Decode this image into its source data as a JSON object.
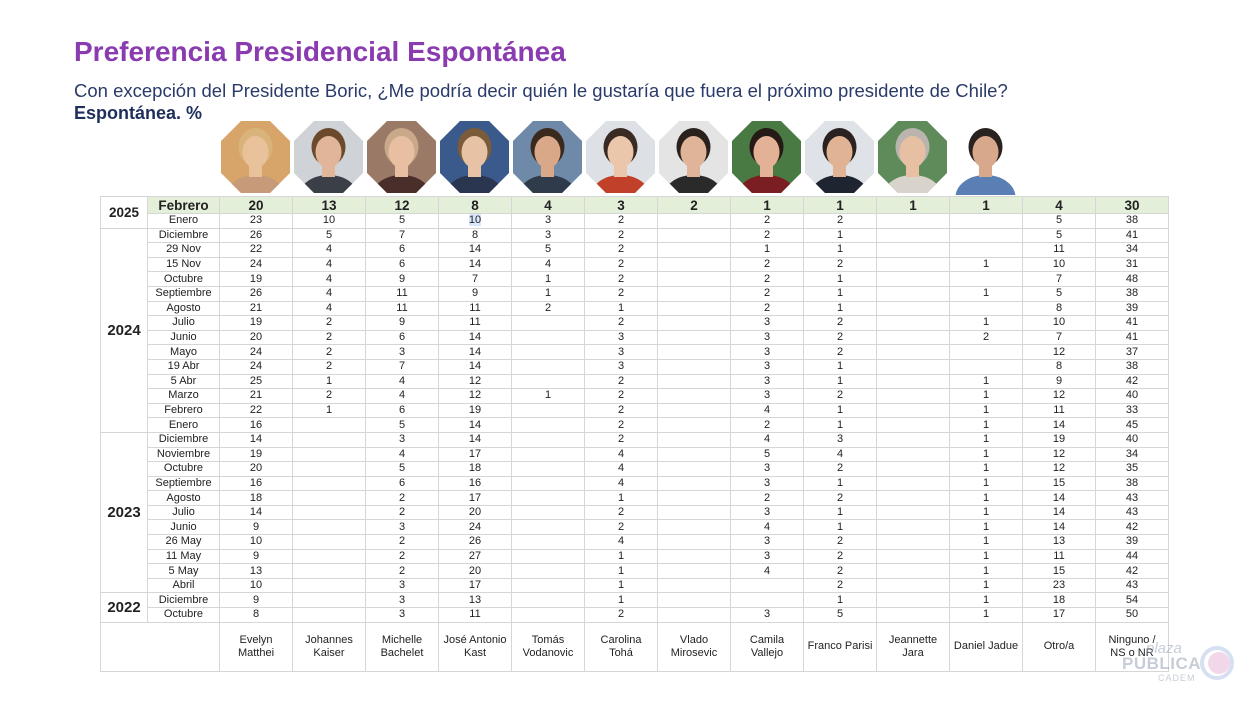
{
  "header": {
    "title": "Preferencia Presidencial Espontánea",
    "subtitle": "Con excepción del Presidente Boric, ¿Me podría decir quién le gustaría que fuera el próximo presidente de Chile?",
    "subtitle2": "Espontánea. %"
  },
  "candidates": [
    {
      "name": "Evelyn Matthei",
      "line1": "Evelyn",
      "line2": "Matthei",
      "photo_bg": "#d7a56a",
      "skin": "#e9c19a",
      "hair": "#d9b47a",
      "suit": "#c79a7a"
    },
    {
      "name": "Johannes Kaiser",
      "line1": "Johannes",
      "line2": "Kaiser",
      "photo_bg": "#cfd2d6",
      "skin": "#e0b59a",
      "hair": "#6b4a2c",
      "suit": "#3a3f48"
    },
    {
      "name": "Michelle Bachelet",
      "line1": "Michelle",
      "line2": "Bachelet",
      "photo_bg": "#9a7a66",
      "skin": "#e8bfa0",
      "hair": "#c9a98a",
      "suit": "#4a2e2a"
    },
    {
      "name": "José Antonio Kast",
      "line1": "José Antonio",
      "line2": "Kast",
      "photo_bg": "#3a5a8c",
      "skin": "#e7c2a4",
      "hair": "#7a5b3a",
      "suit": "#2a3550"
    },
    {
      "name": "Tomás Vodanovic",
      "line1": "Tomás",
      "line2": "Vodanovic",
      "photo_bg": "#6f8aa8",
      "skin": "#d9a888",
      "hair": "#3a2a1e",
      "suit": "#2f3a4a"
    },
    {
      "name": "Carolina Tohá",
      "line1": "Carolina",
      "line2": "Tohá",
      "photo_bg": "#dde1e6",
      "skin": "#ebc6aa",
      "hair": "#3a2a24",
      "suit": "#c0402a"
    },
    {
      "name": "Vlado Mirosevic",
      "line1": "Vlado",
      "line2": "Mirosevic",
      "photo_bg": "#e4e4e4",
      "skin": "#e0b498",
      "hair": "#2a211c",
      "suit": "#2a2a2a"
    },
    {
      "name": "Camila Vallejo",
      "line1": "Camila",
      "line2": "Vallejo",
      "photo_bg": "#4a7a44",
      "skin": "#e2b196",
      "hair": "#251a16",
      "suit": "#7a1e22"
    },
    {
      "name": "Franco Parisi",
      "line1": "Franco Parisi",
      "line2": "",
      "photo_bg": "#dfe2e6",
      "skin": "#e0b394",
      "hair": "#2a2220",
      "suit": "#1e2430"
    },
    {
      "name": "Jeannette Jara",
      "line1": "Jeannette",
      "line2": "Jara",
      "photo_bg": "#5f8a5a",
      "skin": "#e7c0a4",
      "hair": "#b9b5ae",
      "suit": "#d8d4cc"
    },
    {
      "name": "Daniel Jadue",
      "line1": "Daniel Jadue",
      "line2": "",
      "photo_bg": "#ffffff",
      "skin": "#d8a88c",
      "hair": "#2a221e",
      "suit": "#5a7fb4"
    },
    {
      "name": "Otro/a",
      "line1": "Otro/a",
      "line2": ""
    },
    {
      "name": "Ninguno / NS o NR",
      "line1": "Ninguno /",
      "line2": "NS o NR"
    }
  ],
  "table": {
    "header_year": "2025",
    "header_row": {
      "label": "Febrero",
      "values": [
        "20",
        "13",
        "12",
        "8",
        "4",
        "3",
        "2",
        "1",
        "1",
        "1",
        "1",
        "4",
        "30"
      ]
    },
    "groups": [
      {
        "year": "2025",
        "rows": [
          {
            "label": "Enero",
            "values": [
              "23",
              "10",
              "5",
              "10",
              "3",
              "2",
              "",
              "2",
              "2",
              "",
              "",
              "5",
              "38"
            ]
          }
        ]
      },
      {
        "year": "2024",
        "rows": [
          {
            "label": "Diciembre",
            "values": [
              "26",
              "5",
              "7",
              "8",
              "3",
              "2",
              "",
              "2",
              "1",
              "",
              "",
              "5",
              "41"
            ]
          },
          {
            "label": "29 Nov",
            "values": [
              "22",
              "4",
              "6",
              "14",
              "5",
              "2",
              "",
              "1",
              "1",
              "",
              "",
              "11",
              "34"
            ]
          },
          {
            "label": "15 Nov",
            "values": [
              "24",
              "4",
              "6",
              "14",
              "4",
              "2",
              "",
              "2",
              "2",
              "",
              "1",
              "10",
              "31"
            ]
          },
          {
            "label": "Octubre",
            "values": [
              "19",
              "4",
              "9",
              "7",
              "1",
              "2",
              "",
              "2",
              "1",
              "",
              "",
              "7",
              "48"
            ]
          },
          {
            "label": "Septiembre",
            "values": [
              "26",
              "4",
              "11",
              "9",
              "1",
              "2",
              "",
              "2",
              "1",
              "",
              "1",
              "5",
              "38"
            ]
          },
          {
            "label": "Agosto",
            "values": [
              "21",
              "4",
              "11",
              "11",
              "2",
              "1",
              "",
              "2",
              "1",
              "",
              "",
              "8",
              "39"
            ]
          },
          {
            "label": "Julio",
            "values": [
              "19",
              "2",
              "9",
              "11",
              "",
              "2",
              "",
              "3",
              "2",
              "",
              "1",
              "10",
              "41"
            ]
          },
          {
            "label": "Junio",
            "values": [
              "20",
              "2",
              "6",
              "14",
              "",
              "3",
              "",
              "3",
              "2",
              "",
              "2",
              "7",
              "41"
            ]
          },
          {
            "label": "Mayo",
            "values": [
              "24",
              "2",
              "3",
              "14",
              "",
              "3",
              "",
              "3",
              "2",
              "",
              "",
              "12",
              "37"
            ]
          },
          {
            "label": "19 Abr",
            "values": [
              "24",
              "2",
              "7",
              "14",
              "",
              "3",
              "",
              "3",
              "1",
              "",
              "",
              "8",
              "38"
            ]
          },
          {
            "label": "5 Abr",
            "values": [
              "25",
              "1",
              "4",
              "12",
              "",
              "2",
              "",
              "3",
              "1",
              "",
              "1",
              "9",
              "42"
            ]
          },
          {
            "label": "Marzo",
            "values": [
              "21",
              "2",
              "4",
              "12",
              "1",
              "2",
              "",
              "3",
              "2",
              "",
              "1",
              "12",
              "40"
            ]
          },
          {
            "label": "Febrero",
            "values": [
              "22",
              "1",
              "6",
              "19",
              "",
              "2",
              "",
              "4",
              "1",
              "",
              "1",
              "11",
              "33"
            ]
          },
          {
            "label": "Enero",
            "values": [
              "16",
              "",
              "5",
              "14",
              "",
              "2",
              "",
              "2",
              "1",
              "",
              "1",
              "14",
              "45"
            ]
          }
        ]
      },
      {
        "year": "2023",
        "rows": [
          {
            "label": "Diciembre",
            "values": [
              "14",
              "",
              "3",
              "14",
              "",
              "2",
              "",
              "4",
              "3",
              "",
              "1",
              "19",
              "40"
            ]
          },
          {
            "label": "Noviembre",
            "values": [
              "19",
              "",
              "4",
              "17",
              "",
              "4",
              "",
              "5",
              "4",
              "",
              "1",
              "12",
              "34"
            ]
          },
          {
            "label": "Octubre",
            "values": [
              "20",
              "",
              "5",
              "18",
              "",
              "4",
              "",
              "3",
              "2",
              "",
              "1",
              "12",
              "35"
            ]
          },
          {
            "label": "Septiembre",
            "values": [
              "16",
              "",
              "6",
              "16",
              "",
              "4",
              "",
              "3",
              "1",
              "",
              "1",
              "15",
              "38"
            ]
          },
          {
            "label": "Agosto",
            "values": [
              "18",
              "",
              "2",
              "17",
              "",
              "1",
              "",
              "2",
              "2",
              "",
              "1",
              "14",
              "43"
            ]
          },
          {
            "label": "Julio",
            "values": [
              "14",
              "",
              "2",
              "20",
              "",
              "2",
              "",
              "3",
              "1",
              "",
              "1",
              "14",
              "43"
            ]
          },
          {
            "label": "Junio",
            "values": [
              "9",
              "",
              "3",
              "24",
              "",
              "2",
              "",
              "4",
              "1",
              "",
              "1",
              "14",
              "42"
            ]
          },
          {
            "label": "26 May",
            "values": [
              "10",
              "",
              "2",
              "26",
              "",
              "4",
              "",
              "3",
              "2",
              "",
              "1",
              "13",
              "39"
            ]
          },
          {
            "label": "11 May",
            "values": [
              "9",
              "",
              "2",
              "27",
              "",
              "1",
              "",
              "3",
              "2",
              "",
              "1",
              "11",
              "44"
            ]
          },
          {
            "label": "5 May",
            "values": [
              "13",
              "",
              "2",
              "20",
              "",
              "1",
              "",
              "4",
              "2",
              "",
              "1",
              "15",
              "42"
            ]
          },
          {
            "label": "Abril",
            "values": [
              "10",
              "",
              "3",
              "17",
              "",
              "1",
              "",
              "",
              "2",
              "",
              "1",
              "23",
              "43"
            ]
          }
        ]
      },
      {
        "year": "2022",
        "rows": [
          {
            "label": "Diciembre",
            "values": [
              "9",
              "",
              "3",
              "13",
              "",
              "1",
              "",
              "",
              "1",
              "",
              "1",
              "18",
              "54"
            ]
          },
          {
            "label": "Octubre",
            "values": [
              "8",
              "",
              "3",
              "11",
              "",
              "2",
              "",
              "3",
              "5",
              "",
              "1",
              "17",
              "50"
            ]
          }
        ]
      }
    ]
  },
  "logo": {
    "line1": "plaza",
    "line2": "PÚBLICA",
    "line3": "CADEM"
  }
}
